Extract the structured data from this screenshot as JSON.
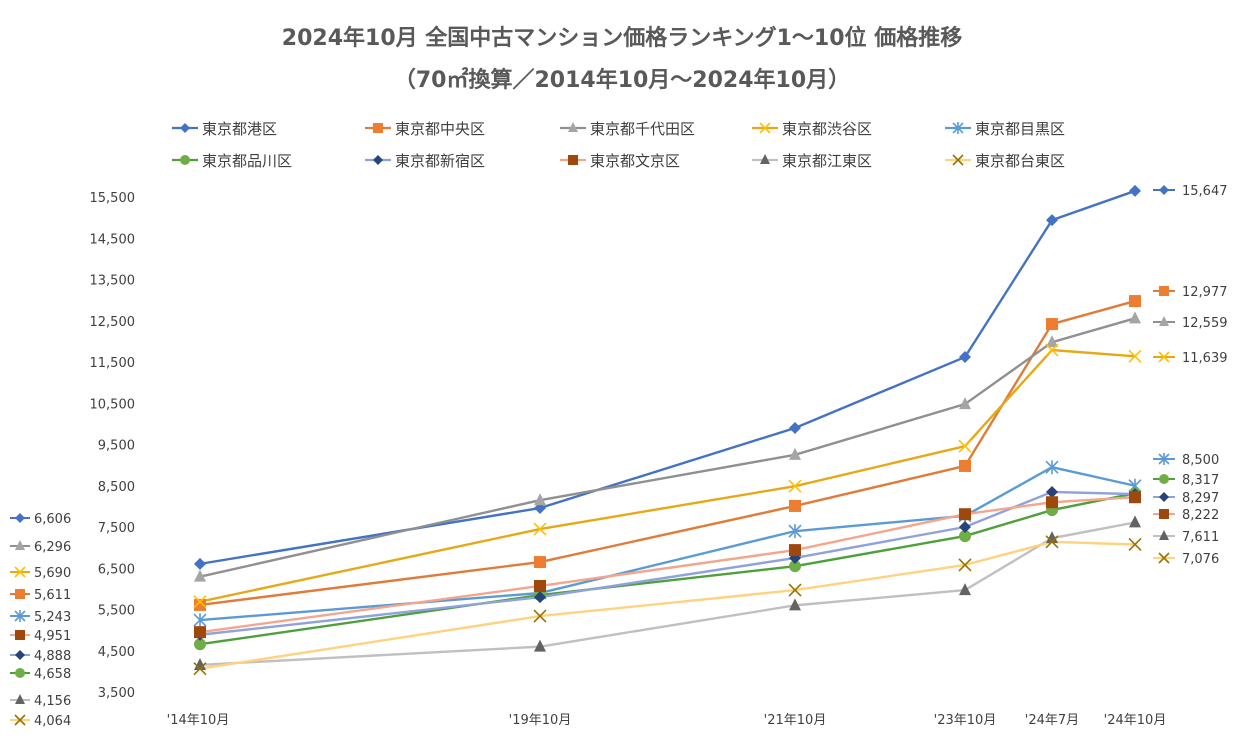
{
  "chart_data": {
    "type": "line",
    "title": "2024年10月 全国中古マンション価格ランキング1～10位 価格推移",
    "subtitle": "（70㎡換算／2014年10月～2024年10月）",
    "xlabel": "",
    "ylabel": "",
    "categories": [
      "'14年10月",
      "'19年10月",
      "'21年10月",
      "'23年10月",
      "'24年7月",
      "'24年10月"
    ],
    "yticks": [
      "3,500",
      "4,500",
      "5,500",
      "6,500",
      "7,500",
      "8,500",
      "9,500",
      "10,500",
      "11,500",
      "12,500",
      "13,500",
      "14,500",
      "15,500"
    ],
    "ylim": [
      3500,
      15500
    ],
    "grid": false,
    "legend_position": "top",
    "series": [
      {
        "name": "東京都港区",
        "values": [
          6606,
          7960,
          9900,
          11620,
          14940,
          15647
        ],
        "start_label": "6,606",
        "end_label": "15,647",
        "line_color": "#4472c4",
        "marker_color": "#4472c4",
        "marker": "diamond"
      },
      {
        "name": "東京都中央区",
        "values": [
          5611,
          6650,
          8010,
          8980,
          12420,
          12977
        ],
        "start_label": "5,611",
        "end_label": "12,977",
        "line_color": "#e07b39",
        "marker_color": "#ed7d31",
        "marker": "square"
      },
      {
        "name": "東京都千代田区",
        "values": [
          6296,
          8150,
          9250,
          10480,
          11980,
          12559
        ],
        "start_label": "6,296",
        "end_label": "12,559",
        "line_color": "#909090",
        "marker_color": "#a5a5a5",
        "marker": "triangle"
      },
      {
        "name": "東京都渋谷区",
        "values": [
          5690,
          7450,
          8490,
          9460,
          11790,
          11639
        ],
        "start_label": "5,690",
        "end_label": "11,639",
        "line_color": "#e6a817",
        "marker_color": "#ffc000",
        "marker": "x"
      },
      {
        "name": "東京都目黒区",
        "values": [
          5243,
          5900,
          7400,
          7770,
          8950,
          8500
        ],
        "start_label": "5,243",
        "end_label": "8,500",
        "line_color": "#5b9bd5",
        "marker_color": "#5b9bd5",
        "marker": "asterisk"
      },
      {
        "name": "東京都品川区",
        "values": [
          4658,
          5850,
          6550,
          7280,
          7910,
          8317
        ],
        "start_label": "4,658",
        "end_label": "8,317",
        "line_color": "#4ea03a",
        "marker_color": "#70ad47",
        "marker": "circle"
      },
      {
        "name": "東京都新宿区",
        "values": [
          4888,
          5800,
          6750,
          7500,
          8350,
          8297
        ],
        "start_label": "4,888",
        "end_label": "8,297",
        "line_color": "#8fa2dc",
        "marker_color": "#264478",
        "marker": "diamond"
      },
      {
        "name": "東京都文京区",
        "values": [
          4951,
          6070,
          6940,
          7810,
          8100,
          8222
        ],
        "start_label": "4,951",
        "end_label": "8,222",
        "line_color": "#f4a68c",
        "marker_color": "#9e480e",
        "marker": "square"
      },
      {
        "name": "東京都江東区",
        "values": [
          4156,
          4600,
          5600,
          5970,
          7230,
          7611
        ],
        "start_label": "4,156",
        "end_label": "7,611",
        "line_color": "#c0c0c0",
        "marker_color": "#636363",
        "marker": "triangle"
      },
      {
        "name": "東京都台東区",
        "values": [
          4064,
          5340,
          5970,
          6580,
          7140,
          7076
        ],
        "start_label": "4,064",
        "end_label": "7,076",
        "line_color": "#ffd27f",
        "marker_color": "#997300",
        "marker": "x"
      }
    ]
  }
}
